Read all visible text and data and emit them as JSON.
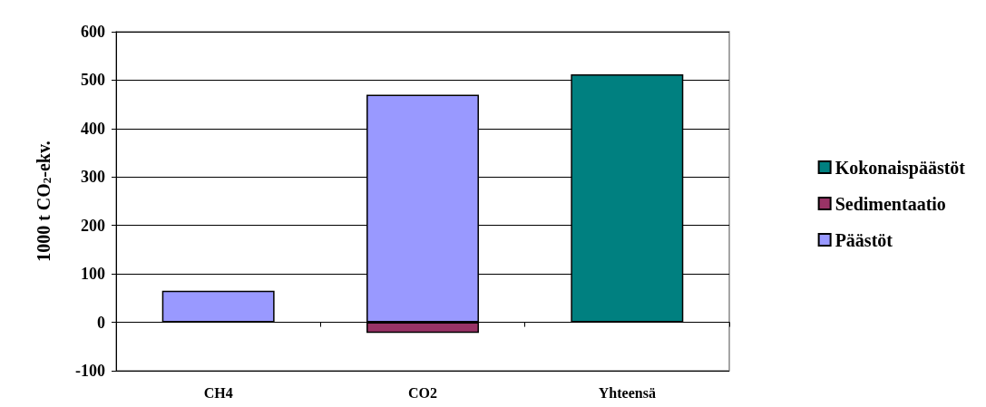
{
  "chart_data": {
    "type": "bar",
    "stacked": true,
    "ylabel": "1000 t CO$_{2}$-ekv.",
    "categories": [
      "CH4",
      "CO2",
      "Yhteensä"
    ],
    "series": [
      {
        "name": "Päästöt",
        "color": "#9999ff",
        "values": [
          65,
          470,
          null
        ]
      },
      {
        "name": "Sedimentaatio",
        "color": "#993366",
        "values": [
          null,
          -22,
          null
        ]
      },
      {
        "name": "Kokonaispäästöt",
        "color": "#008080",
        "values": [
          null,
          null,
          512
        ]
      }
    ],
    "ylim": [
      -100,
      600
    ],
    "yticks": [
      -100,
      0,
      100,
      200,
      300,
      400,
      500,
      600
    ],
    "grid": "y",
    "legend": "right"
  }
}
